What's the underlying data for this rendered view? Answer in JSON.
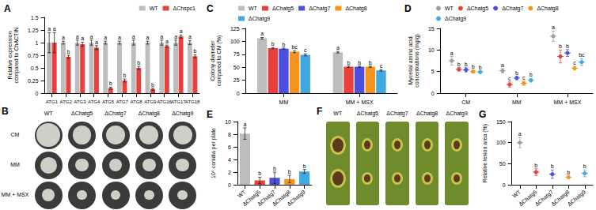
{
  "chart_data": [
    {
      "type": "bar",
      "title": "A",
      "ylabel": "Relative expression\ncompared to ChACTIN",
      "categories": [
        "ATG1",
        "ATG2",
        "ATG3",
        "ATG4",
        "ATG5",
        "ATG7",
        "ATG8",
        "ATG9",
        "ATG16",
        "ATG17",
        "ATG18"
      ],
      "series": [
        {
          "name": "WT",
          "color": "#bdbdbd",
          "values": [
            1.0,
            1.0,
            1.0,
            1.0,
            1.0,
            1.0,
            1.0,
            1.0,
            1.0,
            1.0,
            1.0
          ],
          "errors": [
            0.2,
            0.03,
            0.05,
            0.05,
            0.03,
            0.03,
            0.05,
            0.03,
            0.05,
            0.05,
            0.04
          ],
          "letters": [
            "a",
            "a",
            "a",
            "a",
            "a",
            "a",
            "a",
            "a",
            "a",
            "a",
            "a"
          ]
        },
        {
          "name": "ΔChspc1",
          "color": "#e8403a",
          "values": [
            1.0,
            0.72,
            0.97,
            0.9,
            0.1,
            0.25,
            0.5,
            0.08,
            0.93,
            1.12,
            0.73
          ],
          "errors": [
            0.2,
            0.03,
            0.04,
            0.04,
            0.02,
            0.03,
            0.03,
            0.02,
            0.02,
            0.03,
            0.03
          ],
          "letters": [
            "a",
            "b",
            "a",
            "a",
            "b",
            "b",
            "b",
            "b",
            "a",
            "a",
            "b"
          ]
        }
      ],
      "ylim": [
        0,
        1.5
      ],
      "yticks": [
        0,
        0.25,
        0.5,
        0.75,
        1,
        1.25,
        1.5
      ],
      "grid": false,
      "legend": "top-right"
    },
    {
      "type": "bar",
      "title": "C",
      "ylabel": "Colony diameter\ncompared to CM (%)",
      "categories": [
        "MM",
        "MM + MSX"
      ],
      "series": [
        {
          "name": "WT",
          "color": "#bdbdbd",
          "values": [
            106,
            79
          ],
          "errors": [
            1.5,
            1.5
          ],
          "letters": [
            "a",
            "a"
          ]
        },
        {
          "name": "ΔChatg5",
          "color": "#e8403a",
          "values": [
            87,
            51
          ],
          "errors": [
            1.2,
            1.5
          ],
          "letters": [
            "b",
            "b"
          ]
        },
        {
          "name": "ΔChatg7",
          "color": "#4b50e0",
          "values": [
            86,
            51
          ],
          "errors": [
            1.2,
            1.2
          ],
          "letters": [
            "b",
            "b"
          ]
        },
        {
          "name": "ΔChatg8",
          "color": "#f7941d",
          "values": [
            80,
            51
          ],
          "errors": [
            2,
            1.2
          ],
          "letters": [
            "bc",
            "b"
          ]
        },
        {
          "name": "ΔChatg9",
          "color": "#3fa9e0",
          "values": [
            74,
            44
          ],
          "errors": [
            2,
            1.5
          ],
          "letters": [
            "c",
            "c"
          ]
        }
      ],
      "ylim": [
        0,
        125
      ],
      "yticks": [
        0,
        25,
        50,
        75,
        100,
        125
      ],
      "grid": false,
      "legend": "top"
    },
    {
      "type": "scatter",
      "title": "D",
      "ylabel": "Mycelial amino acid\nconcentrations (mg/g)",
      "marker": "circle",
      "categories": [
        "CM",
        "MM",
        "MM + MSX"
      ],
      "series": [
        {
          "name": "WT",
          "color": "#9e9e9e",
          "values": [
            7.5,
            5.2,
            13.2
          ],
          "errors": [
            1,
            0.5,
            1.2
          ],
          "letters": [
            "a",
            "a",
            "a"
          ]
        },
        {
          "name": "ΔChatg5",
          "color": "#e8403a",
          "values": [
            5.5,
            2,
            8.5
          ],
          "errors": [
            0.4,
            0.6,
            1.5
          ],
          "letters": [
            "b",
            "c",
            "b"
          ]
        },
        {
          "name": "ΔChatg7",
          "color": "#4b50e0",
          "values": [
            5.4,
            3.5,
            9.3
          ],
          "errors": [
            0.5,
            0.4,
            0.8
          ],
          "letters": [
            "b",
            "b",
            "b"
          ]
        },
        {
          "name": "ΔChatg8",
          "color": "#f7941d",
          "values": [
            5.0,
            2.3,
            5.8
          ],
          "errors": [
            0.3,
            0.5,
            0.4
          ],
          "letters": [
            "b",
            "c",
            "c"
          ]
        },
        {
          "name": "ΔChatg9",
          "color": "#3fa9e0",
          "values": [
            4.9,
            3.0,
            7.2
          ],
          "errors": [
            0.3,
            0.4,
            0.8
          ],
          "letters": [
            "b",
            "b",
            "bc"
          ]
        }
      ],
      "ylim": [
        0,
        15
      ],
      "yticks": [
        0,
        5,
        10,
        15
      ],
      "grid": false,
      "legend": "top"
    },
    {
      "type": "bar",
      "title": "E",
      "ylabel": "10⁶ conidia per plate",
      "categories": [
        "WT",
        "ΔChatg5",
        "ΔChatg7",
        "ΔChatg8",
        "ΔChatg9"
      ],
      "values": [
        8.1,
        0.7,
        1.1,
        0.9,
        2.1
      ],
      "errors": [
        0.9,
        0.5,
        0.9,
        0.6,
        0.3
      ],
      "letters": [
        "a",
        "b",
        "b",
        "b",
        "b"
      ],
      "colors": [
        "#bdbdbd",
        "#e8403a",
        "#4b50e0",
        "#f7941d",
        "#3fa9e0"
      ],
      "ylim": [
        0,
        10
      ],
      "yticks": [
        0,
        2,
        4,
        6,
        8,
        10
      ],
      "grid": false
    },
    {
      "type": "scatter",
      "title": "G",
      "ylabel": "Relative lesion area (%)",
      "marker": "circle",
      "categories": [
        "WT",
        "ΔChatg5",
        "ΔChatg7",
        "ΔChatg8",
        "ΔChatg9"
      ],
      "values": [
        100,
        30,
        25,
        18,
        27
      ],
      "errors": [
        12,
        8,
        10,
        3,
        8
      ],
      "letters": [
        "a",
        "b",
        "b",
        "b",
        "b"
      ],
      "colors": [
        "#9e9e9e",
        "#e8403a",
        "#4b50e0",
        "#f7941d",
        "#3fa9e0"
      ],
      "ylim": [
        0,
        150
      ],
      "yticks": [
        0,
        50,
        100,
        150
      ],
      "grid": false
    }
  ],
  "photo_panels": [
    {
      "title": "B",
      "columns": [
        "WT",
        "ΔChatg5",
        "ΔChatg7",
        "ΔChatg8",
        "ΔChatg9"
      ],
      "rows": [
        "CM",
        "MM",
        "MM + MSX"
      ]
    },
    {
      "title": "F",
      "columns": [
        "WT",
        "ΔChatg5",
        "ΔChatg7",
        "ΔChatg8",
        "ΔChatg9"
      ]
    }
  ]
}
